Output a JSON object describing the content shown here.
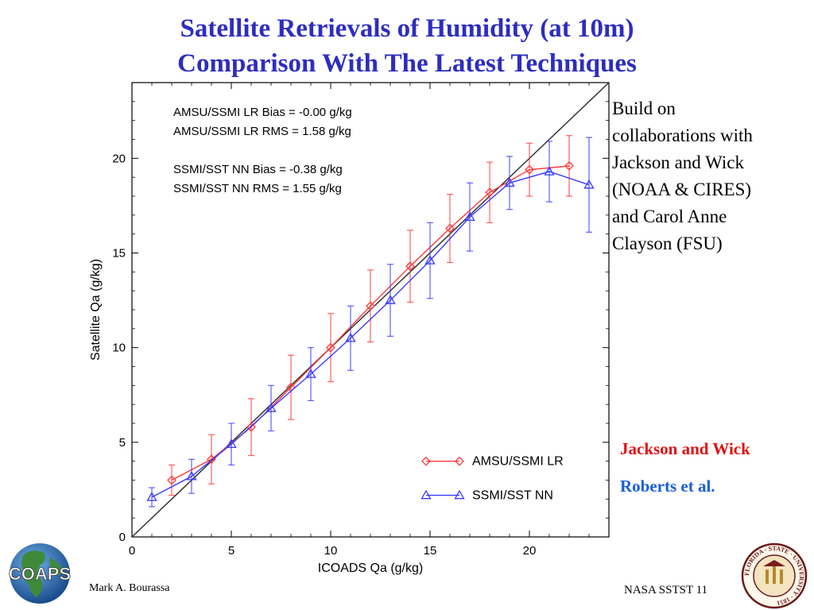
{
  "slide": {
    "title_line1": "Satellite Retrievals of Humidity (at 10m)",
    "title_line2": "Comparison With The Latest Techniques",
    "side_text": [
      "Build on",
      "collaborations with",
      "Jackson and Wick",
      "(NOAA & CIRES)",
      "and Carol Anne",
      "Clayson (FSU)"
    ],
    "credit_red": "Jackson and Wick",
    "credit_blue": "Roberts et al.",
    "author": "Mark A. Bourassa",
    "conference": "NASA SSTST  11",
    "logo_text": "COAPS",
    "seal_text": "FLORIDA · STATE · UNIVERSITY · 1851",
    "colors": {
      "title": "#2d2dc0",
      "credit_red": "#e01010",
      "credit_blue": "#1a5fd8",
      "series_red": "#ff3a3a",
      "series_blue": "#3a3aff"
    }
  },
  "chart_data": {
    "type": "line",
    "xlabel": "ICOADS Qa (g/kg)",
    "ylabel": "Satellite Qa (g/kg)",
    "xlim": [
      0,
      24
    ],
    "ylim": [
      0,
      24
    ],
    "xticks": [
      0,
      5,
      10,
      15,
      20
    ],
    "yticks": [
      0,
      5,
      10,
      15,
      20
    ],
    "reference_line": "1:1",
    "annotations": [
      "AMSU/SSMI LR Bias = -0.00 g/kg",
      "AMSU/SSMI LR RMS =  1.58 g/kg",
      "SSMI/SST NN Bias = -0.38 g/kg",
      "SSMI/SST NN RMS =  1.55 g/kg"
    ],
    "legend_position": "bottom-right",
    "series": [
      {
        "name": "AMSU/SSMI LR",
        "marker": "diamond",
        "color": "#ff3a3a",
        "x": [
          2,
          4,
          6,
          8,
          10,
          12,
          14,
          16,
          18,
          20,
          22
        ],
        "y": [
          3.0,
          4.1,
          5.8,
          7.9,
          10.0,
          12.2,
          14.3,
          16.3,
          18.2,
          19.4,
          19.6
        ],
        "err": [
          0.8,
          1.3,
          1.5,
          1.7,
          1.8,
          1.9,
          1.9,
          1.8,
          1.6,
          1.4,
          1.6
        ]
      },
      {
        "name": "SSMI/SST NN",
        "marker": "triangle",
        "color": "#3a3aff",
        "x": [
          1,
          3,
          5,
          7,
          9,
          11,
          13,
          15,
          17,
          19,
          21,
          23
        ],
        "y": [
          2.1,
          3.2,
          4.9,
          6.8,
          8.6,
          10.5,
          12.5,
          14.6,
          16.9,
          18.7,
          19.3,
          18.6
        ],
        "err": [
          0.5,
          0.9,
          1.1,
          1.2,
          1.4,
          1.7,
          1.9,
          2.0,
          1.8,
          1.4,
          1.6,
          2.5
        ]
      }
    ]
  }
}
